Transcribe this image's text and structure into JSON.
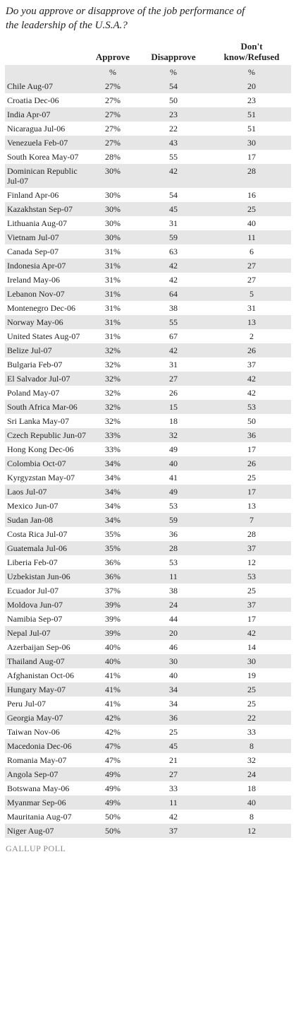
{
  "title": "Do you approve or disapprove of the job performance of the leadership of the U.S.A.?",
  "table": {
    "headers": [
      "",
      "Approve",
      "Disapprove",
      "Don't know/Refused"
    ],
    "units": [
      "",
      "%",
      "%",
      "%"
    ],
    "rows": [
      [
        "Chile Aug-07",
        "27%",
        "54",
        "20"
      ],
      [
        "Croatia Dec-06",
        "27%",
        "50",
        "23"
      ],
      [
        "India Apr-07",
        "27%",
        "23",
        "51"
      ],
      [
        "Nicaragua Jul-06",
        "27%",
        "22",
        "51"
      ],
      [
        "Venezuela Feb-07",
        "27%",
        "43",
        "30"
      ],
      [
        "South Korea May-07",
        "28%",
        "55",
        "17"
      ],
      [
        "Dominican Republic Jul-07",
        "30%",
        "42",
        "28"
      ],
      [
        "Finland Apr-06",
        "30%",
        "54",
        "16"
      ],
      [
        "Kazakhstan Sep-07",
        "30%",
        "45",
        "25"
      ],
      [
        "Lithuania Aug-07",
        "30%",
        "31",
        "40"
      ],
      [
        "Vietnam Jul-07",
        "30%",
        "59",
        "11"
      ],
      [
        "Canada Sep-07",
        "31%",
        "63",
        "6"
      ],
      [
        "Indonesia Apr-07",
        "31%",
        "42",
        "27"
      ],
      [
        "Ireland May-06",
        "31%",
        "42",
        "27"
      ],
      [
        "Lebanon Nov-07",
        "31%",
        "64",
        "5"
      ],
      [
        "Montenegro Dec-06",
        "31%",
        "38",
        "31"
      ],
      [
        "Norway May-06",
        "31%",
        "55",
        "13"
      ],
      [
        "United States Aug-07",
        "31%",
        "67",
        "2"
      ],
      [
        "Belize Jul-07",
        "32%",
        "42",
        "26"
      ],
      [
        "Bulgaria Feb-07",
        "32%",
        "31",
        "37"
      ],
      [
        "El Salvador Jul-07",
        "32%",
        "27",
        "42"
      ],
      [
        "Poland May-07",
        "32%",
        "26",
        "42"
      ],
      [
        "South Africa Mar-06",
        "32%",
        "15",
        "53"
      ],
      [
        "Sri Lanka May-07",
        "32%",
        "18",
        "50"
      ],
      [
        "Czech Republic Jun-07",
        "33%",
        "32",
        "36"
      ],
      [
        "Hong Kong Dec-06",
        "33%",
        "49",
        "17"
      ],
      [
        "Colombia Oct-07",
        "34%",
        "40",
        "26"
      ],
      [
        "Kyrgyzstan May-07",
        "34%",
        "41",
        "25"
      ],
      [
        "Laos Jul-07",
        "34%",
        "49",
        "17"
      ],
      [
        "Mexico Jun-07",
        "34%",
        "53",
        "13"
      ],
      [
        "Sudan Jan-08",
        "34%",
        "59",
        "7"
      ],
      [
        "Costa Rica Jul-07",
        "35%",
        "36",
        "28"
      ],
      [
        "Guatemala Jul-06",
        "35%",
        "28",
        "37"
      ],
      [
        "Liberia Feb-07",
        "36%",
        "53",
        "12"
      ],
      [
        "Uzbekistan Jun-06",
        "36%",
        "11",
        "53"
      ],
      [
        "Ecuador Jul-07",
        "37%",
        "38",
        "25"
      ],
      [
        "Moldova Jun-07",
        "39%",
        "24",
        "37"
      ],
      [
        "Namibia Sep-07",
        "39%",
        "44",
        "17"
      ],
      [
        "Nepal Jul-07",
        "39%",
        "20",
        "42"
      ],
      [
        "Azerbaijan Sep-06",
        "40%",
        "46",
        "14"
      ],
      [
        "Thailand Aug-07",
        "40%",
        "30",
        "30"
      ],
      [
        "Afghanistan Oct-06",
        "41%",
        "40",
        "19"
      ],
      [
        "Hungary May-07",
        "41%",
        "34",
        "25"
      ],
      [
        "Peru Jul-07",
        "41%",
        "34",
        "25"
      ],
      [
        "Georgia May-07",
        "42%",
        "36",
        "22"
      ],
      [
        "Taiwan Nov-06",
        "42%",
        "25",
        "33"
      ],
      [
        "Macedonia Dec-06",
        "47%",
        "45",
        "8"
      ],
      [
        "Romania May-07",
        "47%",
        "21",
        "32"
      ],
      [
        "Angola Sep-07",
        "49%",
        "27",
        "24"
      ],
      [
        "Botswana May-06",
        "49%",
        "33",
        "18"
      ],
      [
        "Myanmar Sep-06",
        "49%",
        "11",
        "40"
      ],
      [
        "Mauritania Aug-07",
        "50%",
        "42",
        "8"
      ],
      [
        "Niger Aug-07",
        "50%",
        "37",
        "12"
      ]
    ]
  },
  "footer": "GALLUP POLL"
}
